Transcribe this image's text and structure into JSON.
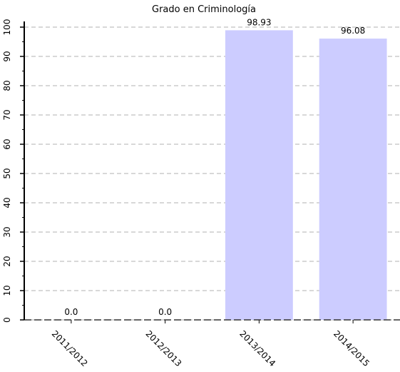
{
  "chart_data": {
    "type": "bar",
    "title": "Grado en Criminología",
    "xlabel": "",
    "ylabel": "",
    "categories": [
      "2011/2012",
      "2012/2013",
      "2013/2014",
      "2014/2015"
    ],
    "values": [
      0.0,
      0.0,
      98.93,
      96.08
    ],
    "data_labels": [
      "0.0",
      "0.0",
      "98.93",
      "96.08"
    ],
    "ylim": [
      0,
      100
    ],
    "yticks": [
      0,
      10,
      20,
      30,
      40,
      50,
      60,
      70,
      80,
      90,
      100
    ],
    "grid": true,
    "x_tick_rotation": "rotated 45 degrees",
    "bar_color": "#ccccff",
    "grid_color": "#b0b0b0"
  }
}
